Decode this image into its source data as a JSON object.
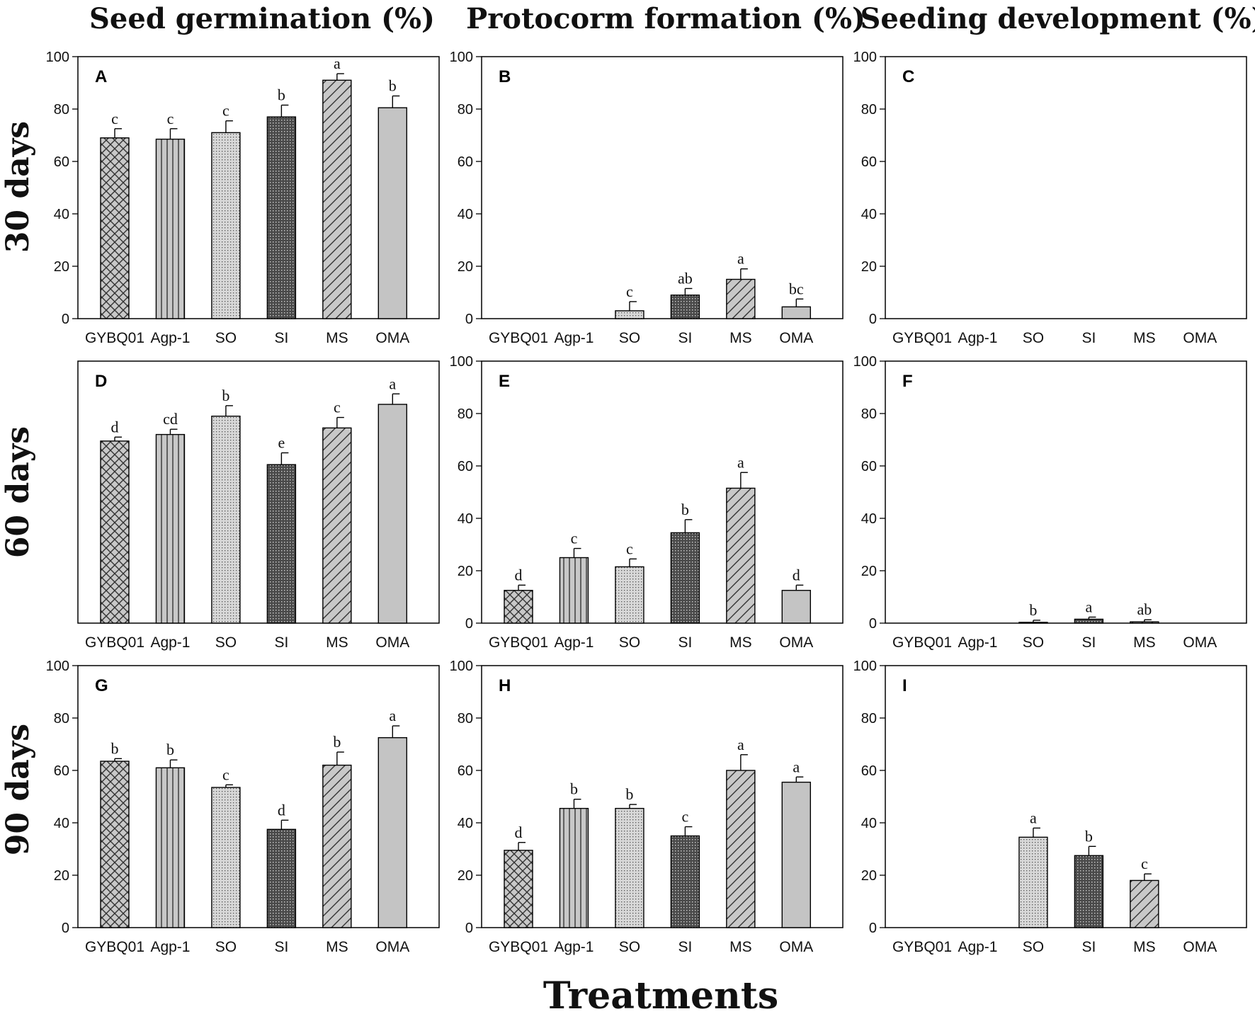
{
  "column_titles": [
    "Seed germination (%)",
    "Protocorm formation (%)",
    "Seeding development (%)"
  ],
  "row_titles": [
    "30 days",
    "60 days",
    "90 days"
  ],
  "x_title": "Treatments",
  "colors": {
    "bar_fill": "#c8c8c8",
    "bar_dark": "#5a5a5a",
    "stroke": "#000000",
    "background": "#ffffff"
  },
  "bar_patterns": [
    "crosshatch",
    "vertical-lines",
    "light-dots",
    "dense-dots",
    "diagonal-lines",
    "solid-gray"
  ],
  "chart_data": [
    {
      "type": "bar",
      "panel": "A",
      "title": "Seed germination (%)",
      "row": "30 days",
      "categories": [
        "GYBQ01",
        "Agp-1",
        "SO",
        "SI",
        "MS",
        "OMA"
      ],
      "values": [
        69,
        68.5,
        71,
        77,
        91,
        80.5
      ],
      "errors": [
        3.5,
        4,
        4.5,
        4.5,
        2.5,
        4.5
      ],
      "labels": [
        "c",
        "c",
        "c",
        "b",
        "a",
        "b"
      ],
      "ylim": [
        0,
        100
      ],
      "yticks": [
        "0",
        "20",
        "40",
        "60",
        "80",
        "100"
      ],
      "show_yticks": true
    },
    {
      "type": "bar",
      "panel": "B",
      "title": "Protocorm formation (%)",
      "row": "30 days",
      "categories": [
        "GYBQ01",
        "Agp-1",
        "SO",
        "SI",
        "MS",
        "OMA"
      ],
      "values": [
        0,
        0,
        3,
        9,
        15,
        4.5
      ],
      "errors": [
        0,
        0,
        3.5,
        2.5,
        4,
        3
      ],
      "labels": [
        "",
        "",
        "c",
        "ab",
        "a",
        "bc"
      ],
      "ylim": [
        0,
        100
      ],
      "yticks": [
        "0",
        "20",
        "40",
        "60",
        "80",
        "100"
      ],
      "show_yticks": true
    },
    {
      "type": "bar",
      "panel": "C",
      "title": "Seeding development (%)",
      "row": "30 days",
      "categories": [
        "GYBQ01",
        "Agp-1",
        "SO",
        "SI",
        "MS",
        "OMA"
      ],
      "values": [
        0,
        0,
        0,
        0,
        0,
        0
      ],
      "errors": [
        0,
        0,
        0,
        0,
        0,
        0
      ],
      "labels": [
        "",
        "",
        "",
        "",
        "",
        ""
      ],
      "ylim": [
        0,
        100
      ],
      "yticks": [
        "0",
        "20",
        "40",
        "60",
        "80",
        "100"
      ],
      "show_yticks": true
    },
    {
      "type": "bar",
      "panel": "D",
      "title": "Seed germination (%)",
      "row": "60 days",
      "categories": [
        "GYBQ01",
        "Agp-1",
        "SO",
        "SI",
        "MS",
        "OMA"
      ],
      "values": [
        69.5,
        72,
        79,
        60.5,
        74.5,
        83.5
      ],
      "errors": [
        1.5,
        2,
        4,
        4.5,
        4,
        4
      ],
      "labels": [
        "d",
        "cd",
        "b",
        "e",
        "c",
        "a"
      ],
      "ylim": [
        0,
        100
      ],
      "yticks": [],
      "show_yticks": false
    },
    {
      "type": "bar",
      "panel": "E",
      "title": "Protocorm formation (%)",
      "row": "60 days",
      "categories": [
        "GYBQ01",
        "Agp-1",
        "SO",
        "SI",
        "MS",
        "OMA"
      ],
      "values": [
        12.5,
        25,
        21.5,
        34.5,
        51.5,
        12.5
      ],
      "errors": [
        2,
        3.5,
        3,
        5,
        6,
        2
      ],
      "labels": [
        "d",
        "c",
        "c",
        "b",
        "a",
        "d"
      ],
      "ylim": [
        0,
        100
      ],
      "yticks": [
        "0",
        "20",
        "40",
        "60",
        "80",
        "100"
      ],
      "show_yticks": true
    },
    {
      "type": "bar",
      "panel": "F",
      "title": "Seeding development (%)",
      "row": "60 days",
      "categories": [
        "GYBQ01",
        "Agp-1",
        "SO",
        "SI",
        "MS",
        "OMA"
      ],
      "values": [
        0,
        0,
        0.3,
        1.5,
        0.5,
        0
      ],
      "errors": [
        0,
        0,
        0.8,
        0.8,
        0.8,
        0
      ],
      "labels": [
        "",
        "",
        "b",
        "a",
        "ab",
        ""
      ],
      "ylim": [
        0,
        100
      ],
      "yticks": [
        "0",
        "20",
        "40",
        "60",
        "80",
        "100"
      ],
      "show_yticks": true
    },
    {
      "type": "bar",
      "panel": "G",
      "title": "Seed germination (%)",
      "row": "90 days",
      "categories": [
        "GYBQ01",
        "Agp-1",
        "SO",
        "SI",
        "MS",
        "OMA"
      ],
      "values": [
        63.5,
        61,
        53.5,
        37.5,
        62,
        72.5
      ],
      "errors": [
        1,
        3,
        1,
        3.5,
        5,
        4.5
      ],
      "labels": [
        "b",
        "b",
        "c",
        "d",
        "b",
        "a"
      ],
      "ylim": [
        0,
        100
      ],
      "yticks": [
        "0",
        "20",
        "40",
        "60",
        "80",
        "100"
      ],
      "show_yticks": true
    },
    {
      "type": "bar",
      "panel": "H",
      "title": "Protocorm formation (%)",
      "row": "90 days",
      "categories": [
        "GYBQ01",
        "Agp-1",
        "SO",
        "SI",
        "MS",
        "OMA"
      ],
      "values": [
        29.5,
        45.5,
        45.5,
        35,
        60,
        55.5
      ],
      "errors": [
        3,
        3.5,
        1.5,
        3.5,
        6,
        2
      ],
      "labels": [
        "d",
        "b",
        "b",
        "c",
        "a",
        "a"
      ],
      "ylim": [
        0,
        100
      ],
      "yticks": [
        "0",
        "20",
        "40",
        "60",
        "80",
        "100"
      ],
      "show_yticks": true
    },
    {
      "type": "bar",
      "panel": "I",
      "title": "Seeding development (%)",
      "row": "90 days",
      "categories": [
        "GYBQ01",
        "Agp-1",
        "SO",
        "SI",
        "MS",
        "OMA"
      ],
      "values": [
        0,
        0,
        34.5,
        27.5,
        18,
        0
      ],
      "errors": [
        0,
        0,
        3.5,
        3.5,
        2.5,
        0
      ],
      "labels": [
        "",
        "",
        "a",
        "b",
        "c",
        ""
      ],
      "ylim": [
        0,
        100
      ],
      "yticks": [
        "0",
        "20",
        "40",
        "60",
        "80",
        "100"
      ],
      "show_yticks": true
    }
  ]
}
